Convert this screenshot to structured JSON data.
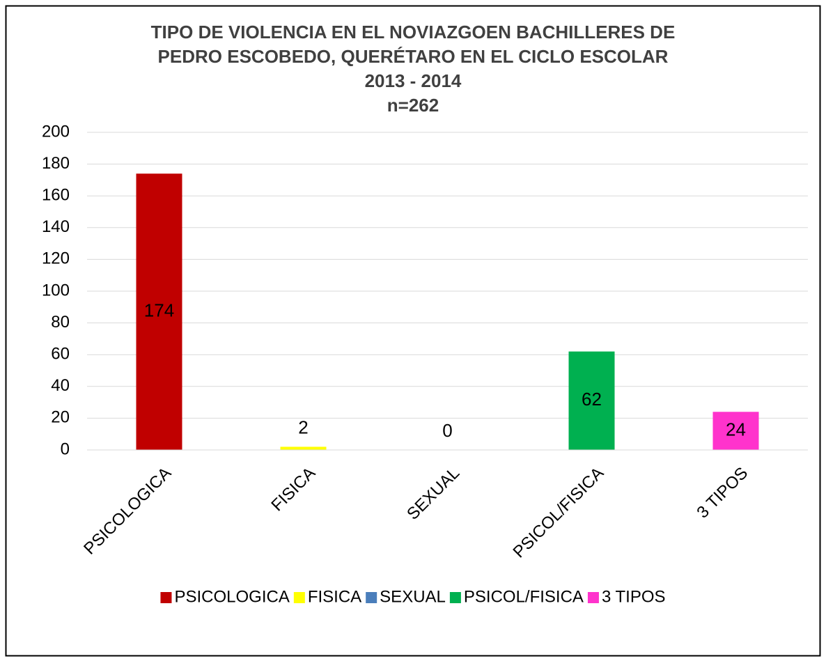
{
  "chart_data": {
    "type": "bar",
    "title": [
      "TIPO DE VIOLENCIA EN EL NOVIAZGOEN BACHILLERES DE",
      "PEDRO ESCOBEDO, QUERÉTARO EN EL CICLO ESCOLAR",
      "2013 - 2014"
    ],
    "subtitle": "n=262",
    "categories": [
      "PSICOLOGICA",
      "FISICA",
      "SEXUAL",
      "PSICOL/FISICA",
      "3 TIPOS"
    ],
    "values": [
      174,
      2,
      0,
      62,
      24
    ],
    "colors": [
      "#c00000",
      "#ffff00",
      "#4a7ebb",
      "#00b050",
      "#ff33cc"
    ],
    "ylim": [
      0,
      200
    ],
    "yticks": [
      0,
      20,
      40,
      60,
      80,
      100,
      120,
      140,
      160,
      180,
      200
    ],
    "grid": true,
    "legend": "bottom"
  }
}
